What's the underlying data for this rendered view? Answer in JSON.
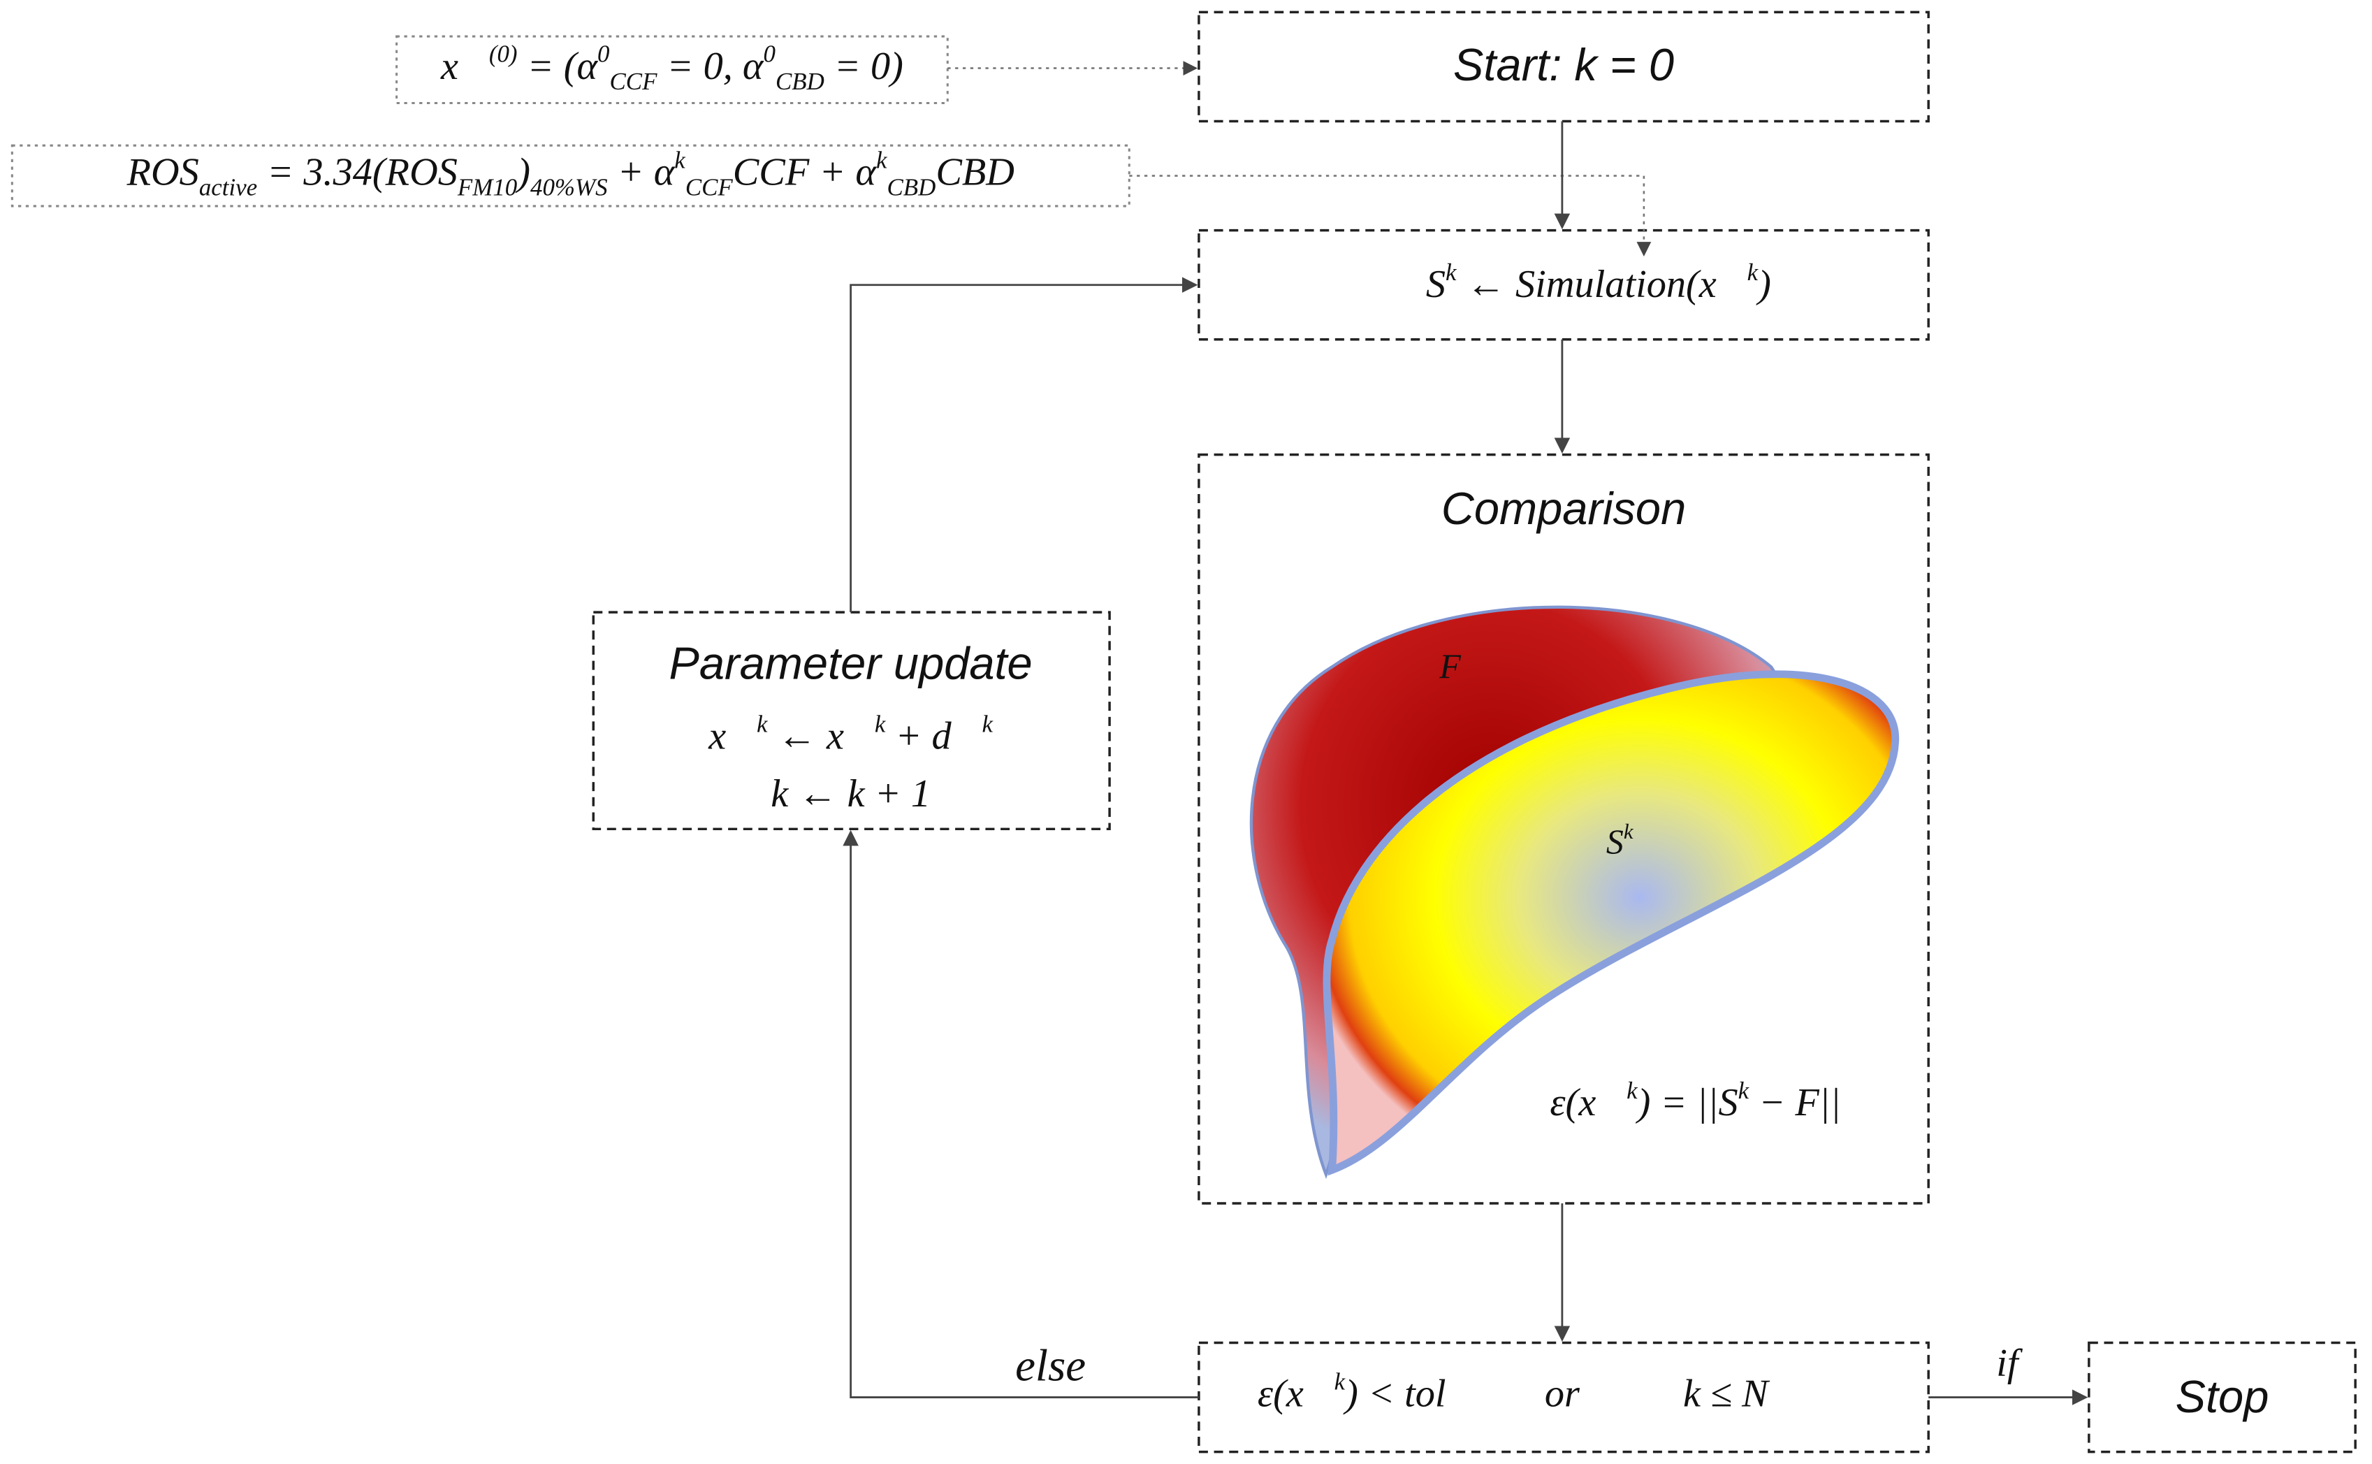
{
  "init_formula": [
    {
      "t": "x⃗",
      "sup": "(0)"
    },
    " = (",
    {
      "t": "α",
      "sup": "0",
      "sub": "CCF"
    },
    " = 0, ",
    {
      "t": "α",
      "sup": "0",
      "sub": "CBD"
    },
    " = 0)"
  ],
  "ros_formula": [
    {
      "t": "ROS",
      "sub": "active"
    },
    " = 3.34(",
    {
      "t": "ROS",
      "sub": "FM10"
    },
    {
      "t": ")",
      "sub": "40%WS"
    },
    " + ",
    {
      "t": "α",
      "sup": "k",
      "sub": "CCF"
    },
    "CCF + ",
    {
      "t": "α",
      "sup": "k",
      "sub": "CBD"
    },
    "CBD"
  ],
  "start": {
    "label": "Start: k = 0"
  },
  "simulation": {
    "formula": [
      {
        "t": "S",
        "sup": "k"
      },
      " ← Simulation(",
      {
        "t": "x⃗",
        "sup": "k"
      },
      ")"
    ]
  },
  "comparison": {
    "title": "Comparison",
    "fire_label": "F",
    "sim_label": [
      {
        "t": "S",
        "sup": "k"
      }
    ],
    "error": [
      "ε(",
      {
        "t": "x⃗",
        "sup": "k"
      },
      ") = ||",
      {
        "t": "S",
        "sup": "k"
      },
      " − F||"
    ]
  },
  "parameter_update": {
    "title": "Parameter update",
    "line1": [
      {
        "t": "x⃗",
        "sup": "k"
      },
      " ← ",
      {
        "t": "x⃗",
        "sup": "k"
      },
      " + ",
      {
        "t": "d⃗",
        "sup": "k"
      }
    ],
    "line2": [
      "k ← k + 1"
    ]
  },
  "condition": {
    "left": [
      "ε(",
      {
        "t": "x⃗",
        "sup": "k"
      },
      ") < tol"
    ],
    "middle": "or",
    "right": [
      "k ≤ N"
    ]
  },
  "edges": {
    "else": "else",
    "if": "if"
  },
  "stop": {
    "label": "Stop"
  }
}
